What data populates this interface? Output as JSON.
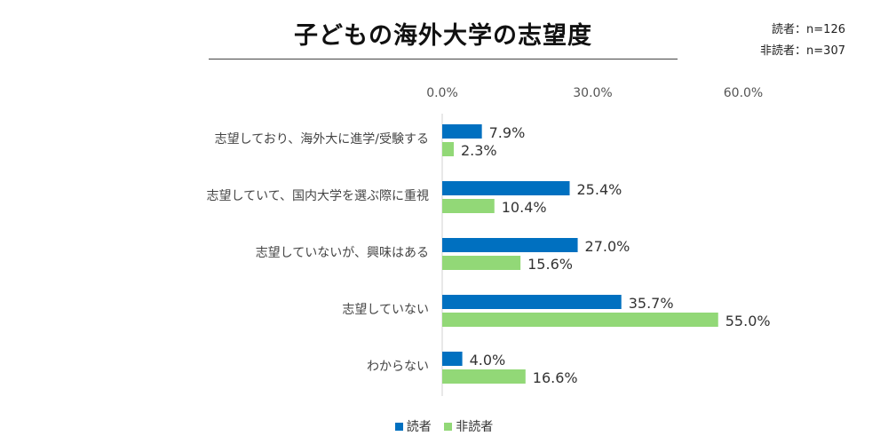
{
  "chart_data": {
    "type": "bar",
    "orientation": "horizontal",
    "title": "子どもの海外大学の志望度",
    "categories": [
      "志望しており、海外大に進学/受験する",
      "志望していて、国内大学を選ぶ際に重視",
      "志望していないが、興味はある",
      "志望していない",
      "わからない"
    ],
    "series": [
      {
        "name": "読者",
        "color": "#0070C0",
        "values": [
          7.9,
          25.4,
          27.0,
          35.7,
          4.0
        ],
        "labels": [
          "7.9%",
          "25.4%",
          "27.0%",
          "35.7%",
          "4.0%"
        ]
      },
      {
        "name": "非読者",
        "color": "#92D877",
        "values": [
          2.3,
          10.4,
          15.6,
          55.0,
          16.6
        ],
        "labels": [
          "2.3%",
          "10.4%",
          "15.6%",
          "55.0%",
          "16.6%"
        ]
      }
    ],
    "xlim": [
      0,
      60
    ],
    "ticks": [
      0,
      30,
      60
    ],
    "tick_labels": [
      "0.0%",
      "30.0%",
      "60.0%"
    ],
    "grid": false,
    "legend_position": "bottom"
  },
  "sample_sizes": [
    "読者：n=126",
    "非読者：n=307"
  ]
}
